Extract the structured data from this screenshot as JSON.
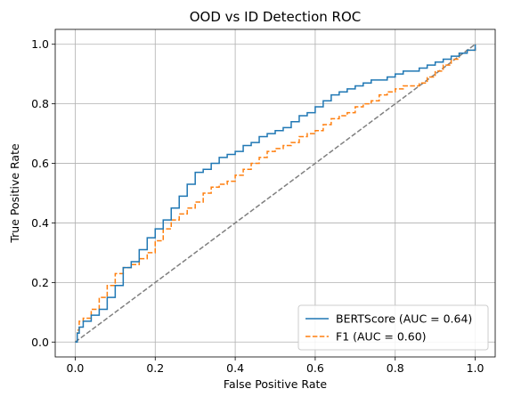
{
  "chart_data": {
    "type": "line",
    "title": "OOD vs ID Detection ROC",
    "xlabel": "False Positive Rate",
    "ylabel": "True Positive Rate",
    "xlim": [
      -0.05,
      1.05
    ],
    "ylim": [
      -0.05,
      1.05
    ],
    "xticks": [
      "0.0",
      "0.2",
      "0.4",
      "0.6",
      "0.8",
      "1.0"
    ],
    "yticks": [
      "0.0",
      "0.2",
      "0.4",
      "0.6",
      "0.8",
      "1.0"
    ],
    "grid": true,
    "legend_position": "lower-right",
    "series": [
      {
        "name": "BERTScore (AUC = 0.64)",
        "color": "#1f77b4",
        "style": "solid",
        "x": [
          0.0,
          0.005,
          0.01,
          0.02,
          0.04,
          0.06,
          0.08,
          0.1,
          0.12,
          0.14,
          0.16,
          0.18,
          0.2,
          0.22,
          0.24,
          0.26,
          0.28,
          0.3,
          0.32,
          0.34,
          0.36,
          0.38,
          0.4,
          0.42,
          0.44,
          0.46,
          0.48,
          0.5,
          0.52,
          0.54,
          0.56,
          0.58,
          0.6,
          0.62,
          0.64,
          0.66,
          0.68,
          0.7,
          0.72,
          0.74,
          0.76,
          0.78,
          0.8,
          0.82,
          0.84,
          0.86,
          0.88,
          0.9,
          0.92,
          0.94,
          0.96,
          0.98,
          1.0
        ],
        "y": [
          0.0,
          0.03,
          0.05,
          0.07,
          0.09,
          0.11,
          0.15,
          0.19,
          0.25,
          0.27,
          0.31,
          0.35,
          0.38,
          0.41,
          0.45,
          0.49,
          0.53,
          0.57,
          0.58,
          0.6,
          0.62,
          0.63,
          0.64,
          0.66,
          0.67,
          0.69,
          0.7,
          0.71,
          0.72,
          0.74,
          0.76,
          0.77,
          0.79,
          0.81,
          0.83,
          0.84,
          0.85,
          0.86,
          0.87,
          0.88,
          0.88,
          0.89,
          0.9,
          0.91,
          0.91,
          0.92,
          0.93,
          0.94,
          0.95,
          0.96,
          0.97,
          0.98,
          1.0
        ]
      },
      {
        "name": "F1  (AUC = 0.60)",
        "color": "#ff7f0e",
        "style": "dashed",
        "x": [
          0.0,
          0.005,
          0.01,
          0.02,
          0.04,
          0.06,
          0.08,
          0.1,
          0.12,
          0.14,
          0.16,
          0.18,
          0.2,
          0.22,
          0.24,
          0.26,
          0.28,
          0.3,
          0.32,
          0.34,
          0.36,
          0.38,
          0.4,
          0.42,
          0.44,
          0.46,
          0.48,
          0.5,
          0.52,
          0.54,
          0.56,
          0.58,
          0.6,
          0.62,
          0.64,
          0.66,
          0.68,
          0.7,
          0.72,
          0.74,
          0.76,
          0.78,
          0.8,
          0.82,
          0.84,
          0.86,
          0.88,
          0.9,
          0.92,
          0.94,
          0.96,
          0.98,
          1.0
        ],
        "y": [
          0.0,
          0.04,
          0.07,
          0.08,
          0.11,
          0.15,
          0.19,
          0.23,
          0.25,
          0.26,
          0.28,
          0.3,
          0.34,
          0.38,
          0.41,
          0.43,
          0.45,
          0.47,
          0.5,
          0.52,
          0.53,
          0.54,
          0.56,
          0.58,
          0.6,
          0.62,
          0.64,
          0.65,
          0.66,
          0.67,
          0.69,
          0.7,
          0.71,
          0.73,
          0.75,
          0.76,
          0.77,
          0.79,
          0.8,
          0.81,
          0.83,
          0.84,
          0.85,
          0.86,
          0.86,
          0.87,
          0.89,
          0.91,
          0.93,
          0.95,
          0.97,
          0.98,
          1.0
        ]
      },
      {
        "name": "",
        "color": "#7f7f7f",
        "style": "dashed",
        "x": [
          0.0,
          1.0
        ],
        "y": [
          0.0,
          1.0
        ]
      }
    ]
  }
}
